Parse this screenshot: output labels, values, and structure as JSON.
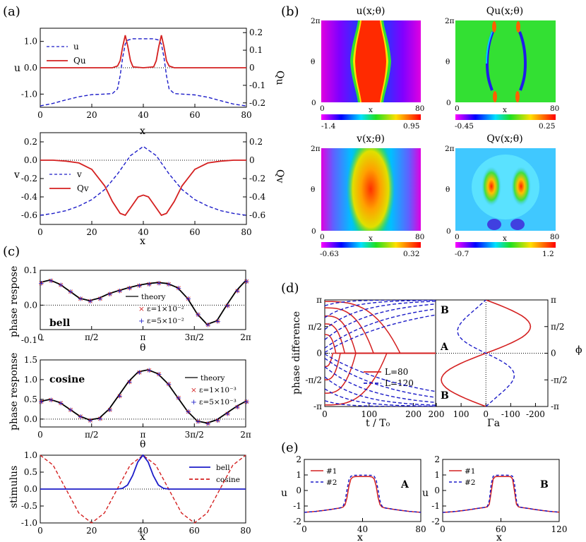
{
  "panels": {
    "a": "(a)",
    "b": "(b)",
    "c": "(c)",
    "d": "(d)",
    "e": "(e)"
  },
  "colors": {
    "red": "#d42020",
    "blue": "#1c1cc8",
    "black": "#000000"
  },
  "chart_data": [
    {
      "id": "a1",
      "type": "line",
      "xlabel": "x",
      "ylabel": "u",
      "y2label": "Qu",
      "xlim": [
        0,
        80
      ],
      "ylim": [
        -1.5,
        1.5
      ],
      "y2lim": [
        -0.225,
        0.225
      ],
      "xticks": [
        "0",
        "20",
        "40",
        "60",
        "80"
      ],
      "yticks": [
        "-1.0",
        "0.0",
        "1.0"
      ],
      "y2ticks": [
        "-0.2",
        "-0.1",
        "0",
        "0.1",
        "0.2"
      ],
      "legend": [
        "u",
        "Qu"
      ],
      "series": [
        {
          "name": "u",
          "style": "dashed",
          "color": "blue",
          "x": [
            0,
            5,
            10,
            15,
            20,
            25,
            28,
            30,
            31,
            32,
            33,
            34,
            36,
            40,
            44,
            46,
            47,
            48,
            49,
            50,
            52,
            55,
            60,
            65,
            70,
            75,
            80
          ],
          "y": [
            -1.45,
            -1.35,
            -1.22,
            -1.1,
            -1.02,
            -1.0,
            -0.98,
            -0.8,
            -0.3,
            0.4,
            0.9,
            1.05,
            1.1,
            1.1,
            1.1,
            1.05,
            0.9,
            0.4,
            -0.3,
            -0.8,
            -0.98,
            -1.0,
            -1.03,
            -1.12,
            -1.25,
            -1.38,
            -1.45
          ]
        },
        {
          "name": "Qu",
          "style": "solid",
          "color": "red",
          "axis": "y2",
          "x": [
            0,
            28,
            30,
            31,
            32,
            33,
            34,
            35,
            36,
            40,
            44,
            45,
            46,
            47,
            48,
            49,
            50,
            52,
            80
          ],
          "y": [
            0,
            0,
            0.01,
            0.04,
            0.12,
            0.185,
            0.12,
            0.04,
            0.005,
            0,
            0.005,
            0.04,
            0.12,
            0.185,
            0.12,
            0.04,
            0.01,
            0,
            0
          ]
        }
      ]
    },
    {
      "id": "a2",
      "type": "line",
      "xlabel": "x",
      "ylabel": "v",
      "y2label": "Qv",
      "xlim": [
        0,
        80
      ],
      "ylim": [
        -0.7,
        0.3
      ],
      "y2lim": [
        -0.7,
        0.3
      ],
      "xticks": [
        "0",
        "20",
        "40",
        "60",
        "80"
      ],
      "yticks": [
        "-0.6",
        "-0.4",
        "-0.2",
        "0.0",
        "0.2"
      ],
      "y2ticks": [
        "-0.6",
        "-0.4",
        "-0.2",
        "0",
        "0.2"
      ],
      "legend": [
        "v",
        "Qv"
      ],
      "series": [
        {
          "name": "v",
          "style": "dashed",
          "color": "blue",
          "x": [
            0,
            5,
            10,
            15,
            20,
            25,
            30,
            35,
            40,
            45,
            50,
            55,
            60,
            65,
            70,
            75,
            80
          ],
          "y": [
            -0.6,
            -0.58,
            -0.55,
            -0.5,
            -0.43,
            -0.32,
            -0.15,
            0.05,
            0.15,
            0.05,
            -0.15,
            -0.32,
            -0.43,
            -0.5,
            -0.55,
            -0.58,
            -0.6
          ]
        },
        {
          "name": "Qv",
          "style": "solid",
          "color": "red",
          "axis": "y2",
          "x": [
            0,
            5,
            10,
            15,
            20,
            25,
            28,
            31,
            33,
            35,
            38,
            40,
            42,
            45,
            47,
            49,
            52,
            55,
            60,
            65,
            70,
            75,
            80
          ],
          "y": [
            0,
            0,
            -0.01,
            -0.03,
            -0.1,
            -0.28,
            -0.45,
            -0.58,
            -0.6,
            -0.52,
            -0.4,
            -0.38,
            -0.4,
            -0.52,
            -0.6,
            -0.58,
            -0.45,
            -0.28,
            -0.1,
            -0.03,
            -0.01,
            0,
            0
          ]
        }
      ]
    },
    {
      "id": "b",
      "type": "heatmap",
      "maps": [
        {
          "title": "u(x;θ)",
          "min": "-1.4",
          "max": "0.95",
          "ymax": "2π",
          "ymin": "0",
          "ylabel": "θ",
          "xlabel": "x",
          "x0": "0",
          "x1": "80"
        },
        {
          "title": "Qu(x;θ)",
          "min": "-0.45",
          "max": "0.25",
          "ymax": "2π",
          "ymin": "0",
          "ylabel": "θ",
          "xlabel": "x",
          "x0": "0",
          "x1": "80"
        },
        {
          "title": "v(x;θ)",
          "min": "-0.63",
          "max": "0.32",
          "ymax": "2π",
          "ymin": "0",
          "ylabel": "θ",
          "xlabel": "x",
          "x0": "0",
          "x1": "80"
        },
        {
          "title": "Qv(x;θ)",
          "min": "-0.7",
          "max": "1.2",
          "ymax": "2π",
          "ymin": "0",
          "ylabel": "θ",
          "xlabel": "x",
          "x0": "0",
          "x1": "80"
        }
      ]
    },
    {
      "id": "c1",
      "type": "line",
      "ylabel": "phase respose",
      "xlabel": "θ",
      "note": "bell",
      "xlim": [
        0,
        6.2832
      ],
      "ylim": [
        -0.07,
        0.1
      ],
      "xticks": [
        "0",
        "π/2",
        "π",
        "3π/2",
        "2π"
      ],
      "yticks": [
        "-0.1",
        "0.0",
        "0.1"
      ],
      "legend": [
        "theory",
        "ε=1×10⁻²",
        "ε=5×10⁻²"
      ],
      "series": [
        {
          "name": "theory",
          "style": "solid",
          "color": "black",
          "x": [
            0,
            0.3,
            0.6,
            0.9,
            1.2,
            1.5,
            1.8,
            2.1,
            2.4,
            2.7,
            3.0,
            3.3,
            3.6,
            3.9,
            4.2,
            4.5,
            4.8,
            5.1,
            5.4,
            5.7,
            6.0,
            6.28
          ],
          "y": [
            0.065,
            0.072,
            0.06,
            0.04,
            0.02,
            0.013,
            0.02,
            0.033,
            0.042,
            0.05,
            0.057,
            0.062,
            0.065,
            0.062,
            0.05,
            0.02,
            -0.025,
            -0.055,
            -0.045,
            0,
            0.042,
            0.07
          ]
        }
      ]
    },
    {
      "id": "c2",
      "type": "line",
      "ylabel": "phase response",
      "xlabel": "θ",
      "note": "cosine",
      "xlim": [
        0,
        6.2832
      ],
      "ylim": [
        -0.2,
        1.5
      ],
      "xticks": [
        "0",
        "π/2",
        "π",
        "3π/2",
        "2π"
      ],
      "yticks": [
        "0.0",
        "0.5",
        "1.0",
        "1.5"
      ],
      "legend": [
        "theory",
        "ε=1×10⁻³",
        "ε=5×10⁻³"
      ],
      "series": [
        {
          "name": "theory",
          "style": "solid",
          "color": "black",
          "x": [
            0,
            0.3,
            0.6,
            0.9,
            1.2,
            1.5,
            1.8,
            2.1,
            2.4,
            2.7,
            3.0,
            3.3,
            3.6,
            3.9,
            4.2,
            4.5,
            4.8,
            5.1,
            5.4,
            5.7,
            6.0,
            6.28
          ],
          "y": [
            0.45,
            0.5,
            0.42,
            0.25,
            0.08,
            -0.02,
            0.02,
            0.25,
            0.6,
            0.95,
            1.2,
            1.25,
            1.15,
            0.9,
            0.55,
            0.2,
            -0.05,
            -0.1,
            -0.02,
            0.15,
            0.32,
            0.45
          ]
        }
      ]
    },
    {
      "id": "c3",
      "type": "line",
      "ylabel": "stimulus",
      "xlabel": "x",
      "xlim": [
        0,
        80
      ],
      "ylim": [
        -1.0,
        1.0
      ],
      "xticks": [
        "0",
        "20",
        "40",
        "60",
        "80"
      ],
      "yticks": [
        "-1.0",
        "-0.5",
        "0.0",
        "0.5",
        "1.0"
      ],
      "legend": [
        "bell",
        "cosine"
      ],
      "series": [
        {
          "name": "bell",
          "style": "solid",
          "color": "blue",
          "x": [
            0,
            30,
            32,
            34,
            36,
            38,
            40,
            42,
            44,
            46,
            48,
            50,
            80
          ],
          "y": [
            0,
            0,
            0.02,
            0.12,
            0.4,
            0.8,
            1.0,
            0.8,
            0.4,
            0.12,
            0.02,
            0,
            0
          ]
        },
        {
          "name": "cosine",
          "style": "dashed",
          "color": "red",
          "x": [
            0,
            5,
            10,
            15,
            20,
            25,
            30,
            35,
            40,
            45,
            50,
            55,
            60,
            65,
            70,
            75,
            80
          ],
          "y": [
            1,
            0.7071,
            0,
            -0.7071,
            -1,
            -0.7071,
            0,
            0.7071,
            1,
            0.7071,
            0,
            -0.7071,
            -1,
            -0.7071,
            0,
            0.7071,
            1
          ]
        }
      ]
    },
    {
      "id": "d1",
      "type": "line",
      "ylabel": "phase difference",
      "xlabel": "t / T₀",
      "xlim": [
        0,
        250
      ],
      "ylim": [
        -3.1416,
        3.1416
      ],
      "xticks": [
        "0",
        "100",
        "200"
      ],
      "yticks": [
        "-π",
        "-π/2",
        "0",
        "π/2",
        "π"
      ],
      "legend": [
        "L=80",
        "L=120"
      ]
    },
    {
      "id": "d2",
      "type": "line",
      "xlabel": "Γa",
      "y2label": "ϕ",
      "xlim": [
        200,
        -250
      ],
      "ylim": [
        -3.1416,
        3.1416
      ],
      "xticks": [
        "200",
        "100",
        "0",
        "-100",
        "-200"
      ],
      "y2ticks": [
        "-π",
        "-π/2",
        "0",
        "π/2",
        "π"
      ],
      "annotations": [
        "B",
        "A",
        "B"
      ]
    },
    {
      "id": "e1",
      "type": "line",
      "note": "A",
      "xlabel": "x",
      "ylabel": "u",
      "xlim": [
        0,
        80
      ],
      "ylim": [
        -2,
        2
      ],
      "xticks": [
        "0",
        "40",
        "80"
      ],
      "yticks": [
        "-2",
        "-1",
        "0",
        "1",
        "2"
      ],
      "legend": [
        "#1",
        "#2"
      ]
    },
    {
      "id": "e2",
      "type": "line",
      "note": "B",
      "xlabel": "x",
      "ylabel": "u",
      "xlim": [
        0,
        120
      ],
      "ylim": [
        -2,
        2
      ],
      "xticks": [
        "0",
        "60",
        "120"
      ],
      "yticks": [
        "-2",
        "-1",
        "0",
        "1",
        "2"
      ],
      "legend": [
        "#1",
        "#2"
      ]
    }
  ]
}
